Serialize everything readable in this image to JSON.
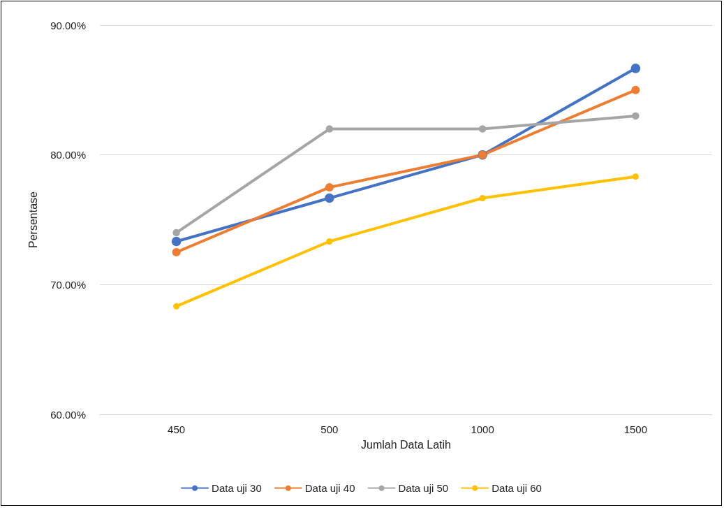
{
  "chart_data": {
    "type": "line",
    "xlabel": "Jumlah Data Latih",
    "ylabel": "Persentase",
    "categories": [
      "450",
      "500",
      "1000",
      "1500"
    ],
    "series": [
      {
        "name": "Data uji 30",
        "color": "#4472c4",
        "values": [
          73.33,
          76.67,
          80,
          86.67
        ]
      },
      {
        "name": "Data uji 40",
        "color": "#ed7d31",
        "values": [
          72.5,
          77.5,
          80,
          85
        ]
      },
      {
        "name": "Data uji 50",
        "color": "#a5a5a5",
        "values": [
          74,
          82,
          82,
          83
        ]
      },
      {
        "name": "Data uji 60",
        "color": "#ffc000",
        "values": [
          68.33,
          73.33,
          76.67,
          78.33
        ]
      }
    ],
    "ylim": [
      60,
      90
    ],
    "yticks": [
      {
        "value": 60,
        "label": "60.00%"
      },
      {
        "value": 70,
        "label": "70.00%"
      },
      {
        "value": 80,
        "label": "80.00%"
      },
      {
        "value": 90,
        "label": "90.00%"
      }
    ],
    "grid": "y",
    "legend": "bottom",
    "marker": "circle",
    "line_style": "solid"
  }
}
